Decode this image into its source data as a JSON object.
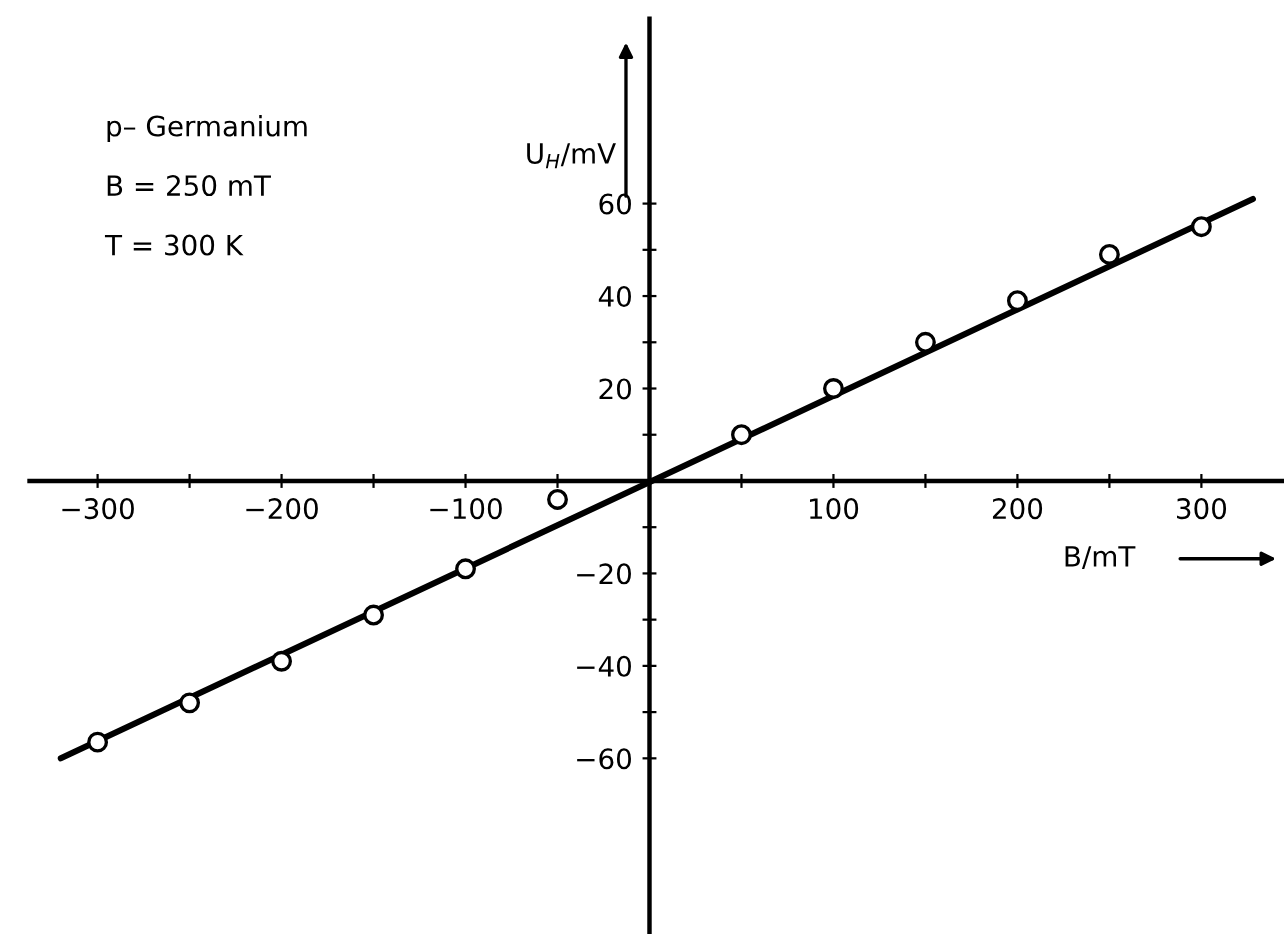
{
  "chart_data": {
    "type": "scatter",
    "xlabel": "B/mT",
    "ylabel": "U$_{H}$/mV",
    "annotations": [
      "p– Germanium",
      "B = 250 mT",
      "T = 300 K"
    ],
    "x": [
      -300,
      -250,
      -200,
      -150,
      -100,
      -50,
      50,
      100,
      150,
      200,
      250,
      300
    ],
    "series": [
      {
        "color": "#000000",
        "marker": "circle",
        "values": [
          -56.5,
          -48,
          -39,
          -29,
          -19,
          -4,
          10,
          20,
          30,
          39,
          49,
          55
        ]
      },
      {
        "type": "line",
        "color": "#000000",
        "x": [
          -320,
          328
        ],
        "values": [
          -60,
          61
        ]
      }
    ],
    "xlim": [
      -337,
      347
    ],
    "ylim": [
      -98,
      100
    ],
    "xticks": [
      {
        "value": -300,
        "label": "−300"
      },
      {
        "value": -250,
        "label": null
      },
      {
        "value": -200,
        "label": "−200"
      },
      {
        "value": -150,
        "label": null
      },
      {
        "value": -100,
        "label": "−100"
      },
      {
        "value": -50,
        "label": null
      },
      {
        "value": 50,
        "label": null
      },
      100,
      {
        "value": 150,
        "label": null
      },
      200,
      {
        "value": 250,
        "label": null
      },
      300
    ],
    "yticks": [
      {
        "value": -60,
        "label": "−60"
      },
      {
        "value": -50,
        "label": null
      },
      {
        "value": -40,
        "label": "−40"
      },
      {
        "value": -30,
        "label": null
      },
      {
        "value": -20,
        "label": "−20"
      },
      {
        "value": -10,
        "label": null
      },
      {
        "value": 10,
        "label": null
      },
      20,
      {
        "value": 30,
        "label": null
      },
      40,
      {
        "value": 50,
        "label": null
      },
      60
    ],
    "grid": false,
    "legend": false
  }
}
